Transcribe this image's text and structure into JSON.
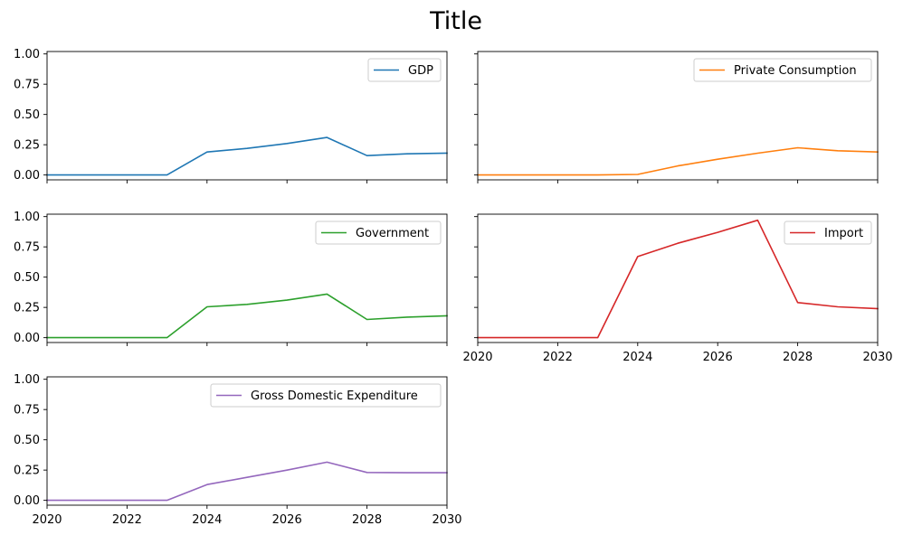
{
  "figure": {
    "title": "Title"
  },
  "chart_data": [
    {
      "type": "line",
      "title": "",
      "xlabel": "",
      "ylabel": "",
      "xlim": [
        2020,
        2030
      ],
      "ylim": [
        -0.04,
        1.02
      ],
      "xticks": [
        "2020",
        "2022",
        "2024",
        "2026",
        "2028",
        "2030"
      ],
      "yticks": [
        "0.00",
        "0.25",
        "0.50",
        "0.75",
        "1.00"
      ],
      "show_xtick_labels": false,
      "show_ytick_labels": true,
      "grid": false,
      "legend_position": "top-right",
      "color": "#1f77b4",
      "series": [
        {
          "name": "GDP",
          "x": [
            2020,
            2021,
            2022,
            2023,
            2024,
            2025,
            2026,
            2027,
            2028,
            2029,
            2030
          ],
          "values": [
            0.0,
            0.0,
            0.0,
            0.0,
            0.19,
            0.22,
            0.26,
            0.31,
            0.16,
            0.175,
            0.18
          ]
        }
      ]
    },
    {
      "type": "line",
      "title": "",
      "xlabel": "",
      "ylabel": "",
      "xlim": [
        2020,
        2030
      ],
      "ylim": [
        -0.04,
        1.02
      ],
      "xticks": [
        "2020",
        "2022",
        "2024",
        "2026",
        "2028",
        "2030"
      ],
      "yticks": [
        "0.00",
        "0.25",
        "0.50",
        "0.75",
        "1.00"
      ],
      "show_xtick_labels": false,
      "show_ytick_labels": false,
      "grid": false,
      "legend_position": "top-right",
      "color": "#ff7f0e",
      "series": [
        {
          "name": "Private Consumption",
          "x": [
            2020,
            2021,
            2022,
            2023,
            2024,
            2025,
            2026,
            2027,
            2028,
            2029,
            2030
          ],
          "values": [
            0.0,
            0.0,
            0.0,
            0.0,
            0.005,
            0.075,
            0.13,
            0.18,
            0.225,
            0.2,
            0.19
          ]
        }
      ]
    },
    {
      "type": "line",
      "title": "",
      "xlabel": "",
      "ylabel": "",
      "xlim": [
        2020,
        2030
      ],
      "ylim": [
        -0.04,
        1.02
      ],
      "xticks": [
        "2020",
        "2022",
        "2024",
        "2026",
        "2028",
        "2030"
      ],
      "yticks": [
        "0.00",
        "0.25",
        "0.50",
        "0.75",
        "1.00"
      ],
      "show_xtick_labels": false,
      "show_ytick_labels": true,
      "grid": false,
      "legend_position": "top-right",
      "color": "#2ca02c",
      "series": [
        {
          "name": "Government",
          "x": [
            2020,
            2021,
            2022,
            2023,
            2024,
            2025,
            2026,
            2027,
            2028,
            2029,
            2030
          ],
          "values": [
            0.0,
            0.0,
            0.0,
            0.0,
            0.255,
            0.275,
            0.31,
            0.36,
            0.15,
            0.17,
            0.18
          ]
        }
      ]
    },
    {
      "type": "line",
      "title": "",
      "xlabel": "",
      "ylabel": "",
      "xlim": [
        2020,
        2030
      ],
      "ylim": [
        -0.04,
        1.02
      ],
      "xticks": [
        "2020",
        "2022",
        "2024",
        "2026",
        "2028",
        "2030"
      ],
      "yticks": [
        "0.00",
        "0.25",
        "0.50",
        "0.75",
        "1.00"
      ],
      "show_xtick_labels": true,
      "show_ytick_labels": false,
      "grid": false,
      "legend_position": "top-right",
      "color": "#d62728",
      "series": [
        {
          "name": "Import",
          "x": [
            2020,
            2021,
            2022,
            2023,
            2024,
            2025,
            2026,
            2027,
            2028,
            2029,
            2030
          ],
          "values": [
            0.0,
            0.0,
            0.0,
            0.0,
            0.67,
            0.78,
            0.87,
            0.97,
            0.29,
            0.255,
            0.24
          ]
        }
      ]
    },
    {
      "type": "line",
      "title": "",
      "xlabel": "",
      "ylabel": "",
      "xlim": [
        2020,
        2030
      ],
      "ylim": [
        -0.04,
        1.02
      ],
      "xticks": [
        "2020",
        "2022",
        "2024",
        "2026",
        "2028",
        "2030"
      ],
      "yticks": [
        "0.00",
        "0.25",
        "0.50",
        "0.75",
        "1.00"
      ],
      "show_xtick_labels": true,
      "show_ytick_labels": true,
      "grid": false,
      "legend_position": "top-right",
      "color": "#9467bd",
      "series": [
        {
          "name": "Gross Domestic Expenditure",
          "x": [
            2020,
            2021,
            2022,
            2023,
            2024,
            2025,
            2026,
            2027,
            2028,
            2029,
            2030
          ],
          "values": [
            0.0,
            0.0,
            0.0,
            0.0,
            0.13,
            0.19,
            0.25,
            0.315,
            0.23,
            0.228,
            0.228
          ]
        }
      ]
    }
  ]
}
